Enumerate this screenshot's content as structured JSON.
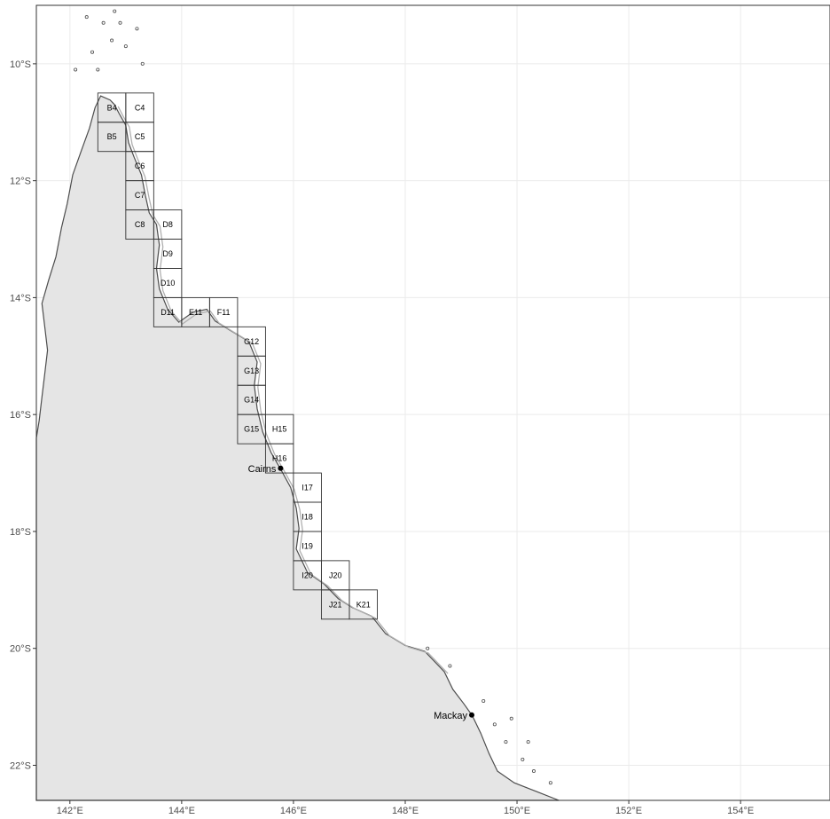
{
  "map": {
    "lon_range": [
      141.4,
      155.6
    ],
    "lat_range": [
      -22.6,
      -9.0
    ],
    "x_ticks": [
      {
        "lon": 142,
        "label": "142°E"
      },
      {
        "lon": 144,
        "label": "144°E"
      },
      {
        "lon": 146,
        "label": "146°E"
      },
      {
        "lon": 148,
        "label": "148°E"
      },
      {
        "lon": 150,
        "label": "150°E"
      },
      {
        "lon": 152,
        "label": "152°E"
      },
      {
        "lon": 154,
        "label": "154°E"
      }
    ],
    "y_ticks": [
      {
        "lat": -10,
        "label": "10°S"
      },
      {
        "lat": -12,
        "label": "12°S"
      },
      {
        "lat": -14,
        "label": "14°S"
      },
      {
        "lat": -16,
        "label": "16°S"
      },
      {
        "lat": -18,
        "label": "18°S"
      },
      {
        "lat": -20,
        "label": "20°S"
      },
      {
        "lat": -22,
        "label": "22°S"
      }
    ],
    "grid_cell_size_deg": 0.5,
    "grid_cells": [
      {
        "label": "B4",
        "west": 142.5,
        "north": -10.5
      },
      {
        "label": "C4",
        "west": 143.0,
        "north": -10.5
      },
      {
        "label": "B5",
        "west": 142.5,
        "north": -11.0
      },
      {
        "label": "C5",
        "west": 143.0,
        "north": -11.0
      },
      {
        "label": "C6",
        "west": 143.0,
        "north": -11.5
      },
      {
        "label": "C7",
        "west": 143.0,
        "north": -12.0
      },
      {
        "label": "C8",
        "west": 143.0,
        "north": -12.5
      },
      {
        "label": "D8",
        "west": 143.5,
        "north": -12.5
      },
      {
        "label": "D9",
        "west": 143.5,
        "north": -13.0
      },
      {
        "label": "D10",
        "west": 143.5,
        "north": -13.5
      },
      {
        "label": "D11",
        "west": 143.5,
        "north": -14.0
      },
      {
        "label": "E11",
        "west": 144.0,
        "north": -14.0
      },
      {
        "label": "F11",
        "west": 144.5,
        "north": -14.0
      },
      {
        "label": "G12",
        "west": 145.0,
        "north": -14.5
      },
      {
        "label": "G13",
        "west": 145.0,
        "north": -15.0
      },
      {
        "label": "G14",
        "west": 145.0,
        "north": -15.5
      },
      {
        "label": "G15",
        "west": 145.0,
        "north": -16.0
      },
      {
        "label": "H15",
        "west": 145.5,
        "north": -16.0
      },
      {
        "label": "H16",
        "west": 145.5,
        "north": -16.5
      },
      {
        "label": "I17",
        "west": 146.0,
        "north": -17.0
      },
      {
        "label": "I18",
        "west": 146.0,
        "north": -17.5
      },
      {
        "label": "I19",
        "west": 146.0,
        "north": -18.0
      },
      {
        "label": "I20",
        "west": 146.0,
        "north": -18.5
      },
      {
        "label": "J20",
        "west": 146.5,
        "north": -18.5
      },
      {
        "label": "J21",
        "west": 146.5,
        "north": -19.0
      },
      {
        "label": "K21",
        "west": 147.0,
        "north": -19.0
      }
    ],
    "places": [
      {
        "name": "Cairns",
        "lon": 145.77,
        "lat": -16.92
      },
      {
        "name": "Mackay",
        "lon": 149.19,
        "lat": -21.14
      }
    ],
    "coastline": [
      [
        142.55,
        -10.55
      ],
      [
        142.72,
        -10.62
      ],
      [
        142.8,
        -10.7
      ],
      [
        142.88,
        -10.85
      ],
      [
        143.0,
        -11.05
      ],
      [
        143.05,
        -11.35
      ],
      [
        143.15,
        -11.6
      ],
      [
        143.28,
        -11.9
      ],
      [
        143.35,
        -12.25
      ],
      [
        143.42,
        -12.55
      ],
      [
        143.55,
        -12.75
      ],
      [
        143.6,
        -13.1
      ],
      [
        143.55,
        -13.5
      ],
      [
        143.6,
        -13.85
      ],
      [
        143.75,
        -14.2
      ],
      [
        143.95,
        -14.42
      ],
      [
        144.2,
        -14.25
      ],
      [
        144.45,
        -14.2
      ],
      [
        144.6,
        -14.4
      ],
      [
        144.85,
        -14.55
      ],
      [
        145.2,
        -14.75
      ],
      [
        145.35,
        -15.1
      ],
      [
        145.3,
        -15.5
      ],
      [
        145.35,
        -15.9
      ],
      [
        145.45,
        -16.3
      ],
      [
        145.6,
        -16.65
      ],
      [
        145.78,
        -16.95
      ],
      [
        145.95,
        -17.25
      ],
      [
        146.05,
        -17.6
      ],
      [
        146.1,
        -17.95
      ],
      [
        146.05,
        -18.3
      ],
      [
        146.25,
        -18.7
      ],
      [
        146.55,
        -18.9
      ],
      [
        146.8,
        -19.15
      ],
      [
        147.05,
        -19.3
      ],
      [
        147.4,
        -19.45
      ],
      [
        147.65,
        -19.75
      ],
      [
        148.0,
        -19.95
      ],
      [
        148.35,
        -20.05
      ],
      [
        148.7,
        -20.4
      ],
      [
        148.85,
        -20.7
      ],
      [
        149.05,
        -20.95
      ],
      [
        149.2,
        -21.15
      ],
      [
        149.35,
        -21.45
      ],
      [
        149.5,
        -21.8
      ],
      [
        149.65,
        -22.1
      ],
      [
        149.95,
        -22.3
      ],
      [
        150.35,
        -22.45
      ],
      [
        150.75,
        -22.6
      ]
    ],
    "west_coast": [
      [
        142.55,
        -10.55
      ],
      [
        142.45,
        -10.75
      ],
      [
        142.35,
        -11.1
      ],
      [
        142.2,
        -11.5
      ],
      [
        142.05,
        -11.9
      ],
      [
        141.95,
        -12.4
      ],
      [
        141.85,
        -12.8
      ],
      [
        141.75,
        -13.3
      ],
      [
        141.62,
        -13.7
      ],
      [
        141.5,
        -14.1
      ],
      [
        141.55,
        -14.5
      ],
      [
        141.6,
        -14.9
      ],
      [
        141.55,
        -15.3
      ],
      [
        141.5,
        -15.7
      ],
      [
        141.45,
        -16.1
      ],
      [
        141.4,
        -16.4
      ]
    ]
  }
}
